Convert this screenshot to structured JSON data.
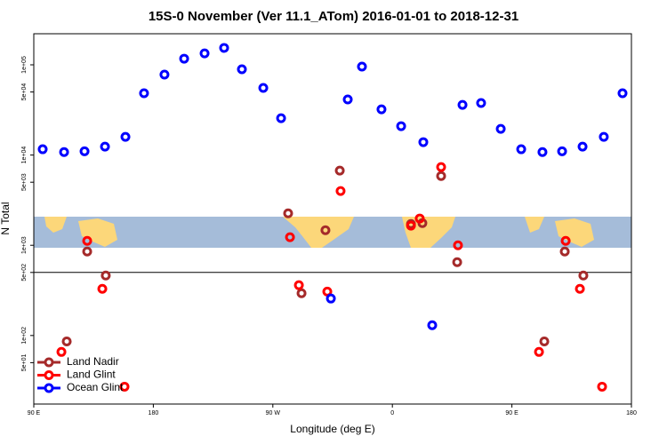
{
  "chart_data": {
    "type": "scatter",
    "title": "15S-0 November (Ver 11.1_ATom)   2016-01-01 to 2018-12-31",
    "xlabel": "Longitude (deg E)",
    "ylabel": "N Total",
    "log_y": true,
    "xlim": [
      90,
      540
    ],
    "xticks": [
      {
        "value": 90,
        "label": "90 E"
      },
      {
        "value": 180,
        "label": "180"
      },
      {
        "value": 270,
        "label": "90 W"
      },
      {
        "value": 360,
        "label": "0"
      },
      {
        "value": 450,
        "label": "90 E"
      },
      {
        "value": 540,
        "label": "180"
      }
    ],
    "ylim": [
      17.4,
      221000
    ],
    "yticks": [
      {
        "value": 50,
        "label": "5e+01"
      },
      {
        "value": 100,
        "label": "1e+02"
      },
      {
        "value": 500,
        "label": "5e+02"
      },
      {
        "value": 1000,
        "label": "1e+03"
      },
      {
        "value": 5000,
        "label": "5e+03"
      },
      {
        "value": 10000,
        "label": "1e+04"
      },
      {
        "value": 50000,
        "label": "5e+04"
      },
      {
        "value": 100000,
        "label": "1e+05"
      }
    ],
    "hline": 500,
    "legend": "lower left",
    "series": [
      {
        "name": "Land Nadir",
        "color": "#a52a2a",
        "x": [
          114.8,
          130.2,
          144.2,
          281.5,
          291.6,
          309.6,
          320.4,
          374,
          382.6,
          396.7,
          408.8,
          474.4,
          489.8,
          503.8
        ],
        "values": [
          86,
          853,
          462,
          2260,
          294,
          1470,
          6730,
          1720,
          1760,
          5860,
          650,
          86,
          853,
          462
        ]
      },
      {
        "name": "Land Glint",
        "color": "#ff0000",
        "x": [
          110.8,
          130.2,
          141.6,
          158.3,
          282.9,
          289.6,
          311,
          321,
          374,
          380.6,
          396.7,
          409.4,
          470.4,
          490.5,
          501.2,
          517.9
        ],
        "values": [
          65.8,
          1120,
          329,
          27.1,
          1230,
          361,
          307,
          3990,
          1650,
          1980,
          7360,
          1000,
          65.8,
          1120,
          329,
          27.1
        ]
      },
      {
        "name": "Ocean Glint",
        "color": "#0000ff",
        "x": [
          96.7,
          112.8,
          128.2,
          143.6,
          159,
          173,
          188.4,
          203.2,
          218.6,
          233.3,
          246.7,
          262.8,
          276.2,
          313.7,
          326.4,
          337.1,
          351.8,
          366.6,
          383.3,
          390,
          412.8,
          426.8,
          441.6,
          457,
          473,
          487.8,
          503.2,
          519.2,
          533.3
        ],
        "values": [
          11600,
          10800,
          11000,
          12400,
          15900,
          48400,
          78000,
          117000,
          134000,
          154000,
          89300,
          55500,
          25600,
          257,
          41300,
          95500,
          32100,
          20900,
          13900,
          130,
          36000,
          37700,
          19500,
          11600,
          10800,
          11000,
          12400,
          15900,
          48400
        ]
      }
    ]
  }
}
